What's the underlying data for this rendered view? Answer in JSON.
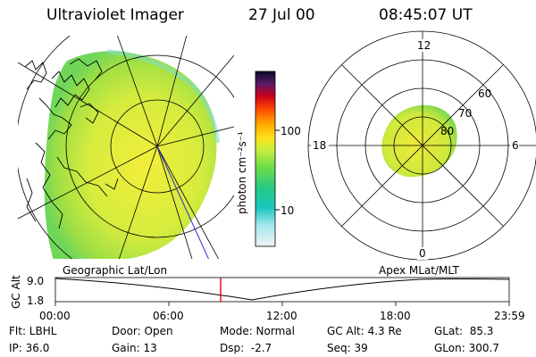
{
  "header": {
    "title": "Ultraviolet Imager",
    "date": "27 Jul 00",
    "time": "08:45:07 UT"
  },
  "colorbar": {
    "unit_label": "photon cm⁻²s⁻¹",
    "tick_100": "100",
    "tick_10": "10",
    "stops": [
      "#f2f2f2",
      "#5fd8e0",
      "#19c7a5",
      "#6bdc4a",
      "#d8f23c",
      "#ffd400",
      "#ff8a00",
      "#ff2a00",
      "#b0001a",
      "#4a1c6a",
      "#0b0b2a"
    ]
  },
  "polar_plot": {
    "mlt_12": "12",
    "mlt_18": "18",
    "mlt_6": "6",
    "mlt_0": "0",
    "lat_60": "60",
    "lat_70": "70",
    "lat_80": "80"
  },
  "timeline": {
    "left_label": "Geographic Lat/Lon",
    "right_label": "Apex MLat/MLT",
    "y_axis_label": "GC Alt",
    "y_top": "9.0",
    "y_bottom": "1.8",
    "ticks": [
      "00:00",
      "06:00",
      "12:00",
      "18:00",
      "23:59"
    ],
    "marker_time": "08:45:07"
  },
  "status": {
    "flt": "Flt: LBHL",
    "ip": "IP: 36.0",
    "door": "Door: Open",
    "gain": "Gain: 13",
    "mode": "Mode: Normal",
    "dsp": "Dsp:  -2.7",
    "gc_alt": "GC Alt: 4.3 Re",
    "seq": "Seq: 39",
    "glat": "GLat:  85.3",
    "glon": "GLon: 300.7"
  }
}
